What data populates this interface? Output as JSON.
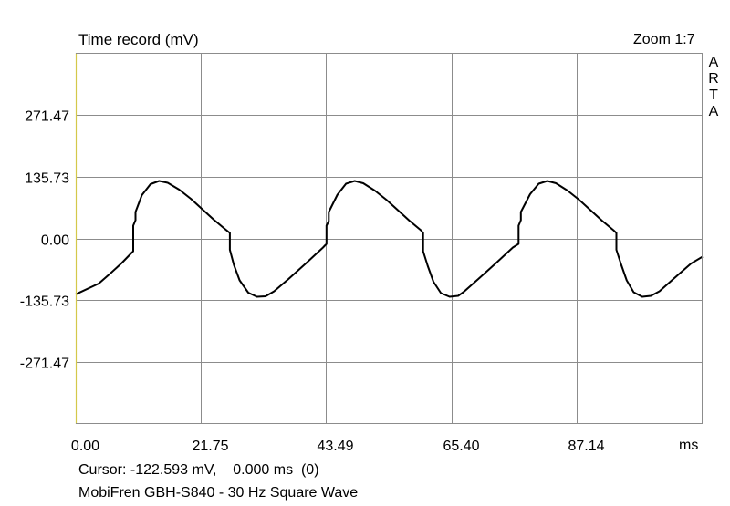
{
  "chart_data": {
    "type": "line",
    "title": "Time record (mV)",
    "zoom_label": "Zoom 1:7",
    "brand": "ARTA",
    "xlabel": "ms",
    "ylabel": "mV",
    "xlim": [
      0,
      109
    ],
    "ylim": [
      -407.2,
      407.2
    ],
    "x_ticks": [
      0,
      21.75,
      43.49,
      65.4,
      87.14
    ],
    "x_tick_labels": [
      "0.00",
      "21.75",
      "43.49",
      "65.40",
      "87.14"
    ],
    "y_ticks": [
      271.47,
      135.73,
      0.0,
      -135.73,
      -271.47
    ],
    "y_tick_labels": [
      "271.47",
      "135.73",
      "0.00",
      "-135.73",
      "-271.47"
    ],
    "grid": true,
    "series": [
      {
        "x": [
          0.0,
          4.0,
          6.0,
          8.0,
          10.0,
          10.0,
          10.4,
          10.4,
          11.5,
          13.0,
          14.5,
          16.0,
          18.0,
          20.0,
          22.0,
          24.0,
          26.0,
          26.8,
          26.8,
          27.5,
          28.5,
          30.0,
          31.5,
          33.0,
          34.5,
          37.0,
          40.0,
          43.0,
          43.6,
          43.6,
          44.0,
          44.0,
          45.5,
          47.0,
          48.5,
          50.0,
          52.0,
          54.0,
          56.0,
          58.0,
          60.0,
          60.4,
          60.4,
          61.2,
          62.2,
          63.5,
          65.0,
          66.5,
          67.5,
          70.0,
          73.0,
          76.0,
          77.0,
          77.0,
          77.4,
          77.4,
          79.0,
          80.5,
          82.0,
          83.5,
          85.5,
          87.5,
          89.5,
          91.5,
          93.5,
          94.0,
          94.0,
          94.8,
          95.8,
          97.0,
          98.5,
          100.0,
          101.5,
          104.0,
          107.0,
          109.0
        ],
        "y": [
          -122.6,
          -99,
          -77,
          -54,
          -28,
          28,
          40,
          58,
          95,
          119,
          126,
          122,
          107,
          87,
          64,
          41,
          20,
          12,
          -25,
          -58,
          -92,
          -119,
          -128,
          -127,
          -116,
          -89,
          -55,
          -20,
          -12,
          28,
          38,
          58,
          96,
          120,
          126,
          121,
          105,
          85,
          62,
          39,
          18,
          12,
          -28,
          -60,
          -95,
          -120,
          -128,
          -126,
          -117,
          -89,
          -55,
          -20,
          -12,
          28,
          40,
          58,
          97,
          120,
          126,
          121,
          105,
          85,
          62,
          39,
          18,
          12,
          -25,
          -56,
          -92,
          -118,
          -128,
          -126,
          -116,
          -88,
          -55,
          -40
        ]
      }
    ]
  },
  "status": {
    "cursor_text": "Cursor: -122.593 mV,    0.000 ms  (0)",
    "caption": "MobiFren GBH-S840 - 30 Hz Square Wave"
  }
}
